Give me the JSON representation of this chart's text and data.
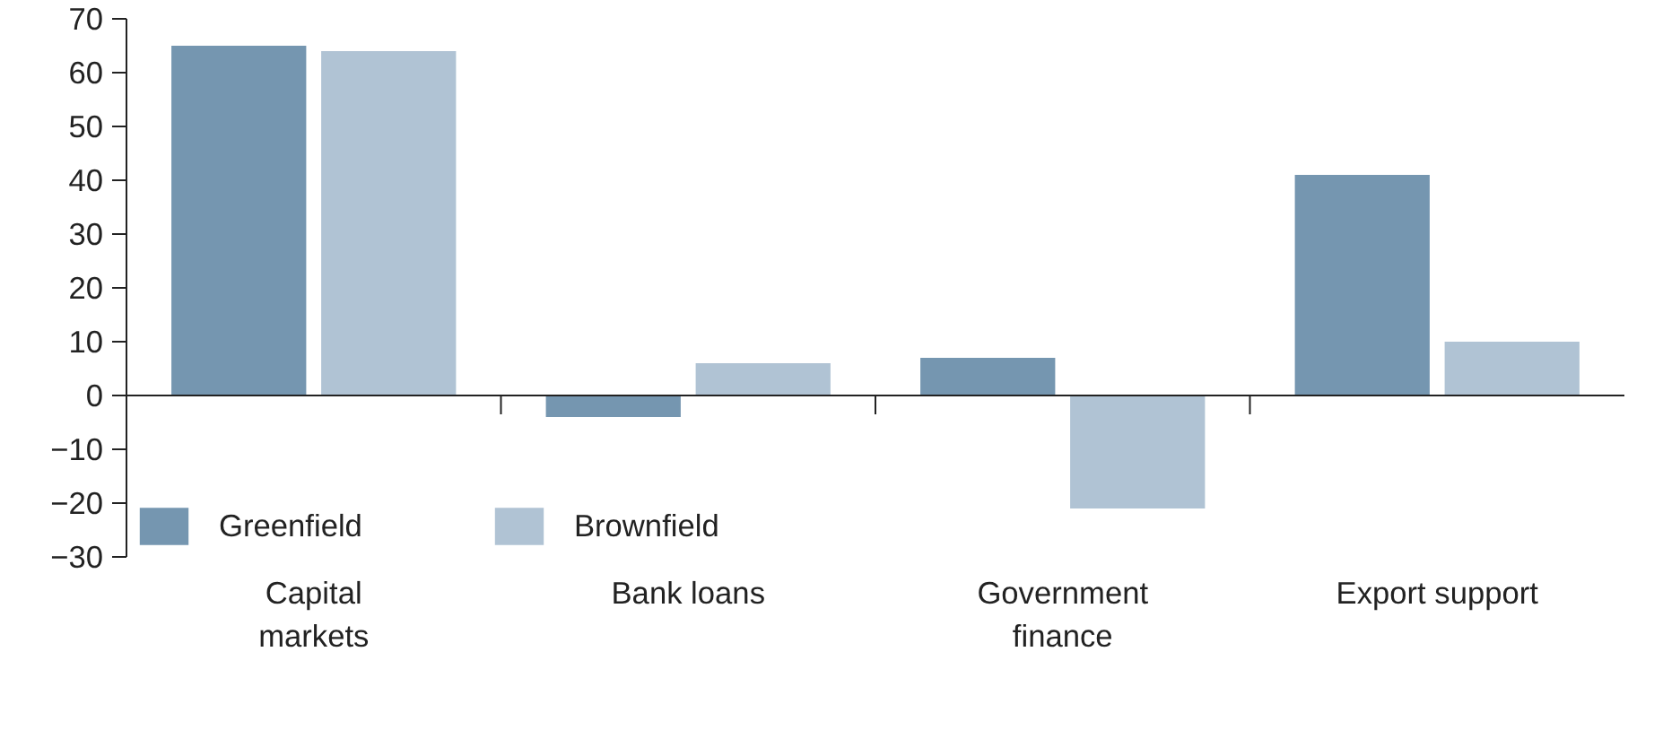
{
  "chart_data": {
    "type": "bar",
    "categories": [
      "Capital markets",
      "Bank loans",
      "Government finance",
      "Export support"
    ],
    "series": [
      {
        "name": "Greenfield",
        "color": "#7596b0",
        "values": [
          65,
          -4,
          7,
          41
        ]
      },
      {
        "name": "Brownfield",
        "color": "#b0c3d4",
        "values": [
          64,
          6,
          -21,
          10
        ]
      }
    ],
    "ylim": [
      -30,
      70
    ],
    "yticks": [
      -30,
      -20,
      -10,
      0,
      10,
      20,
      30,
      40,
      50,
      60,
      70
    ],
    "legend": "bottom left"
  }
}
